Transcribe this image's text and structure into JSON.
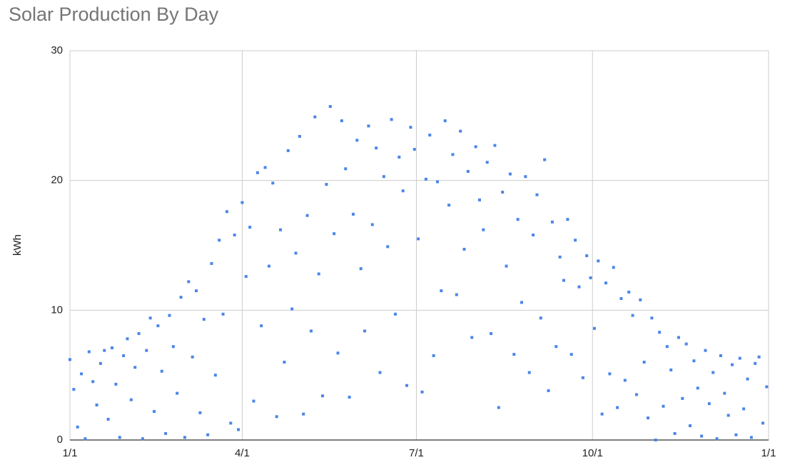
{
  "chart_data": {
    "type": "scatter",
    "title": "Solar Production By Day",
    "y_label": "kWh",
    "color": "#4a86e8",
    "grid": true,
    "xlim": [
      0,
      365
    ],
    "xticks": [
      {
        "value": 0,
        "label": "1/1"
      },
      {
        "value": 90,
        "label": "4/1"
      },
      {
        "value": 181,
        "label": "7/1"
      },
      {
        "value": 273,
        "label": "10/1"
      },
      {
        "value": 365,
        "label": "1/1"
      }
    ],
    "ylim": [
      0,
      30
    ],
    "yticks": [
      0,
      10,
      20,
      30
    ],
    "x": [
      0,
      2,
      4,
      6,
      8,
      10,
      12,
      14,
      16,
      18,
      20,
      22,
      24,
      26,
      28,
      30,
      32,
      34,
      36,
      38,
      40,
      42,
      44,
      46,
      48,
      50,
      52,
      54,
      56,
      58,
      60,
      62,
      64,
      66,
      68,
      70,
      72,
      74,
      76,
      78,
      80,
      82,
      84,
      86,
      88,
      90,
      92,
      94,
      96,
      98,
      100,
      102,
      104,
      106,
      108,
      110,
      112,
      114,
      116,
      118,
      120,
      122,
      124,
      126,
      128,
      130,
      132,
      134,
      136,
      138,
      140,
      142,
      144,
      146,
      148,
      150,
      152,
      154,
      156,
      158,
      160,
      162,
      164,
      166,
      168,
      170,
      172,
      174,
      176,
      178,
      180,
      182,
      184,
      186,
      188,
      190,
      192,
      194,
      196,
      198,
      200,
      202,
      204,
      206,
      208,
      210,
      212,
      214,
      216,
      218,
      220,
      222,
      224,
      226,
      228,
      230,
      232,
      234,
      236,
      238,
      240,
      242,
      244,
      246,
      248,
      250,
      252,
      254,
      256,
      258,
      260,
      262,
      264,
      266,
      268,
      270,
      272,
      274,
      276,
      278,
      280,
      282,
      284,
      286,
      288,
      290,
      292,
      294,
      296,
      298,
      300,
      302,
      304,
      306,
      308,
      310,
      312,
      314,
      316,
      318,
      320,
      322,
      324,
      326,
      328,
      330,
      332,
      334,
      336,
      338,
      340,
      342,
      344,
      346,
      348,
      350,
      352,
      354,
      356,
      358,
      360,
      362,
      364
    ],
    "values": [
      6.2,
      3.9,
      1.0,
      5.1,
      0.1,
      6.8,
      4.5,
      2.7,
      5.9,
      6.9,
      1.6,
      7.1,
      4.3,
      0.2,
      6.5,
      7.8,
      3.1,
      5.6,
      8.2,
      0.1,
      6.9,
      9.4,
      2.2,
      8.8,
      5.3,
      0.5,
      9.6,
      7.2,
      3.6,
      11.0,
      0.2,
      12.2,
      6.4,
      11.5,
      2.1,
      9.3,
      0.4,
      13.6,
      5.0,
      15.4,
      9.7,
      17.6,
      1.3,
      15.8,
      0.8,
      18.3,
      12.6,
      16.4,
      3.0,
      20.6,
      8.8,
      21.0,
      13.4,
      19.8,
      1.8,
      16.2,
      6.0,
      22.3,
      10.1,
      14.4,
      23.4,
      2.0,
      17.3,
      8.4,
      24.9,
      12.8,
      3.4,
      19.7,
      25.7,
      15.9,
      6.7,
      24.6,
      20.9,
      3.3,
      17.4,
      23.1,
      13.2,
      8.4,
      24.2,
      16.6,
      22.5,
      5.2,
      20.3,
      14.9,
      24.7,
      9.7,
      21.8,
      19.2,
      4.2,
      24.1,
      22.4,
      15.5,
      3.7,
      20.1,
      23.5,
      6.5,
      19.9,
      11.5,
      24.6,
      18.1,
      22.0,
      11.2,
      23.8,
      14.7,
      20.7,
      7.9,
      22.6,
      18.5,
      16.2,
      21.4,
      8.2,
      22.7,
      2.5,
      19.1,
      13.4,
      20.5,
      6.6,
      17.0,
      10.6,
      20.3,
      5.2,
      15.8,
      18.9,
      9.4,
      21.6,
      3.8,
      16.8,
      7.2,
      14.1,
      12.3,
      17.0,
      6.6,
      15.4,
      11.8,
      4.8,
      14.2,
      12.5,
      8.6,
      13.8,
      2.0,
      12.1,
      5.1,
      13.3,
      2.5,
      10.9,
      4.6,
      11.4,
      9.6,
      3.5,
      10.8,
      6.0,
      1.7,
      9.4,
      0.0,
      8.3,
      2.6,
      7.2,
      5.4,
      0.5,
      7.9,
      3.2,
      7.4,
      1.1,
      6.1,
      4.0,
      0.3,
      6.9,
      2.8,
      5.2,
      0.1,
      6.5,
      3.6,
      1.9,
      5.8,
      0.4,
      6.3,
      2.4,
      4.7,
      0.2,
      5.9,
      6.4,
      1.3,
      4.1
    ]
  }
}
